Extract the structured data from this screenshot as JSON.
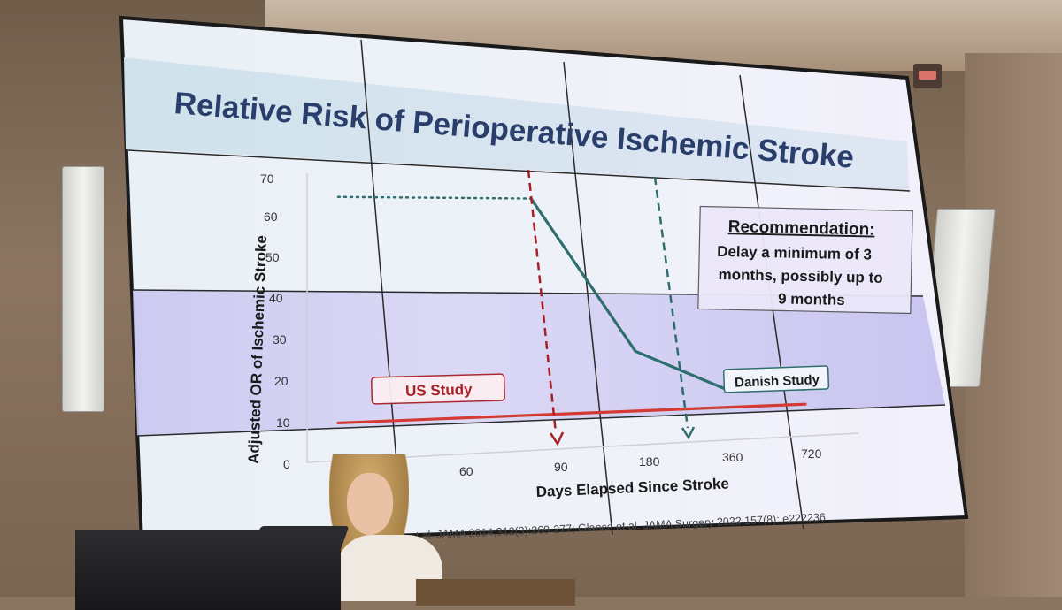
{
  "slide": {
    "title": "Relative Risk of Perioperative Ischemic Stroke",
    "recommendation_heading": "Recommendation:",
    "recommendation_lines": [
      "Delay a minimum of 3",
      "months, possibly up to",
      "9 months"
    ],
    "us_study_label": "US Study",
    "danish_study_label": "Danish Study",
    "citation": "t al. JAMA 2014;312(3):269-277; Glance et al. JAMA Surgery 2022;157(8): e222236"
  },
  "chart_data": {
    "type": "line",
    "xlabel": "Days Elapsed Since Stroke",
    "ylabel": "Adjusted OR of Ischemic Stroke",
    "y_ticks": [
      "0",
      "10",
      "20",
      "30",
      "40",
      "50",
      "60",
      "70"
    ],
    "x_ticks": [
      "60",
      "90",
      "180",
      "360",
      "720"
    ],
    "ylim": [
      0,
      70
    ],
    "series": [
      {
        "name": "Danish Study",
        "color": "#2f6e6e",
        "style": "solid",
        "points": [
          [
            "90",
            65
          ],
          [
            "180",
            25
          ],
          [
            "360",
            14.5
          ],
          [
            "720",
            13.5
          ]
        ]
      },
      {
        "name": "Danish Study",
        "color": "#2f6e6e",
        "style": "dotted",
        "points": [
          [
            "start",
            66
          ],
          [
            "90",
            65
          ]
        ]
      },
      {
        "name": "US Study",
        "color": "#d23a32",
        "style": "solid",
        "points": [
          [
            "start",
            9.5
          ],
          [
            "720",
            9.5
          ]
        ]
      }
    ],
    "markers": [
      {
        "label": "US Study",
        "at": "90",
        "color": "#a82025",
        "style": "dashed-arrow"
      },
      {
        "label": "Danish Study",
        "at": "270",
        "color": "#2f6e6e",
        "style": "dashed-arrow"
      }
    ]
  },
  "colors": {
    "title": "#2a3e6b",
    "red": "#d23a32",
    "teal": "#2f6e6e"
  }
}
